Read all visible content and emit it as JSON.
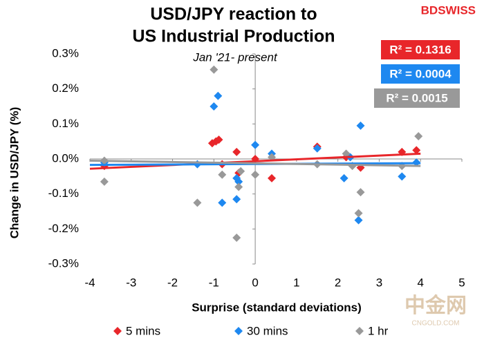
{
  "chart_data": {
    "type": "scatter",
    "title": [
      "USD/JPY reaction to",
      "US Industrial Production"
    ],
    "subtitle": "Jan '21- present",
    "brand": "BDSWISS",
    "watermark": [
      "中金网",
      "CNGOLD.COM"
    ],
    "x_label": "Surprise (standard deviations)",
    "y_label": "Change in USD/JPY  (%)",
    "xlim": [
      -4,
      5
    ],
    "xticks": [
      -4,
      -3,
      -2,
      -1,
      0,
      1,
      2,
      3,
      4,
      5
    ],
    "ylim": [
      -0.3,
      0.3
    ],
    "yticks": [
      {
        "value": -0.3,
        "label": "-0.3%"
      },
      {
        "value": -0.2,
        "label": "-0.2%"
      },
      {
        "value": -0.1,
        "label": "-0.1%"
      },
      {
        "value": 0,
        "label": "0.0%"
      },
      {
        "value": 0.1,
        "label": "0.1%"
      },
      {
        "value": 0.2,
        "label": "0.2%"
      },
      {
        "value": 0.3,
        "label": "0.3%"
      }
    ],
    "series": [
      {
        "name": "5 mins",
        "color": "#e8262a",
        "r2_label": "R² = 0.1316",
        "x": [
          -3.65,
          -1.04,
          -0.95,
          -0.88,
          -0.8,
          -0.45,
          -0.4,
          0,
          0.4,
          1.5,
          2.2,
          2.55,
          3.55,
          3.9
        ],
        "values": [
          -0.02,
          0.045,
          0.05,
          0.055,
          -0.015,
          0.02,
          -0.04,
          0,
          -0.055,
          0.035,
          0.005,
          -0.025,
          0.02,
          0.025
        ],
        "trend": {
          "x": [
            -4,
            4
          ],
          "y": [
            -0.028,
            0.015
          ]
        }
      },
      {
        "name": "30 mins",
        "color": "#1e88f0",
        "r2_label": "R² = 0.0004",
        "x": [
          -3.65,
          -1.4,
          -1.0,
          -0.9,
          -0.8,
          -0.45,
          -0.45,
          -0.4,
          0,
          0.4,
          1.5,
          2.15,
          2.3,
          2.55,
          2.5,
          3.55,
          3.9
        ],
        "values": [
          -0.01,
          -0.015,
          0.15,
          0.18,
          -0.125,
          -0.055,
          -0.115,
          -0.065,
          0.04,
          0.015,
          0.03,
          -0.055,
          0.005,
          0.095,
          -0.175,
          -0.05,
          -0.01
        ],
        "trend": {
          "x": [
            -4,
            4
          ],
          "y": [
            -0.017,
            -0.012
          ]
        }
      },
      {
        "name": "1 hr",
        "color": "#999999",
        "r2_label": "R² = 0.0015",
        "x": [
          -3.65,
          -3.65,
          -1.4,
          -1.0,
          -0.8,
          -0.45,
          -0.4,
          -0.35,
          0,
          0.4,
          1.5,
          2.2,
          2.35,
          2.55,
          2.5,
          3.55,
          3.95
        ],
        "values": [
          -0.065,
          -0.005,
          -0.125,
          0.255,
          -0.045,
          -0.225,
          -0.08,
          -0.035,
          -0.045,
          0.005,
          -0.015,
          0.015,
          -0.02,
          -0.095,
          -0.155,
          -0.02,
          0.065
        ],
        "trend": {
          "x": [
            -4,
            4
          ],
          "y": [
            -0.005,
            -0.02
          ]
        }
      }
    ]
  }
}
